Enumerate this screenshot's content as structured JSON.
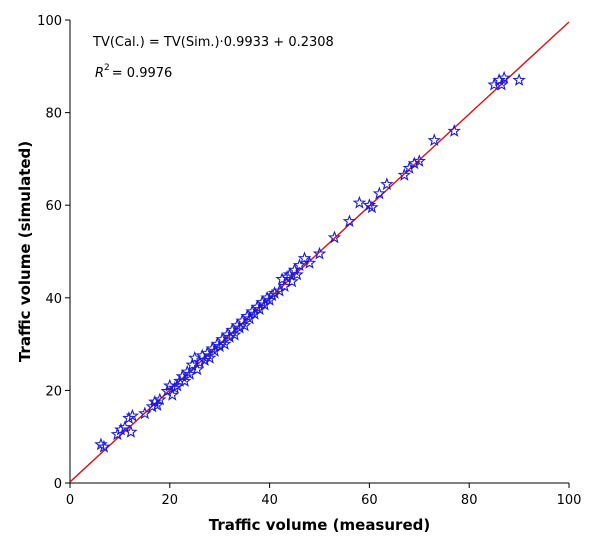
{
  "chart_data": {
    "type": "scatter",
    "xlabel": "Traffic volume (measured)",
    "ylabel": "Traffic volume (simulated)",
    "xlim": [
      0,
      100
    ],
    "ylim": [
      0,
      100
    ],
    "xticks": [
      0,
      20,
      40,
      60,
      80,
      100
    ],
    "yticks": [
      0,
      20,
      40,
      60,
      80,
      100
    ],
    "grid": false,
    "annotations": {
      "equation": "TV(Cal.) = TV(Sim.)·0.9933 + 0.2308",
      "r2_prefix": "R",
      "r2_power": "2",
      "r2_value": "= 0.9976"
    },
    "fit_line": {
      "slope": 0.9933,
      "intercept": 0.2308,
      "x_range": [
        0,
        100
      ]
    },
    "series": [
      {
        "marker": "star",
        "color": "#1a1adc",
        "points": [
          [
            6.2,
            8.3
          ],
          [
            6.8,
            7.8
          ],
          [
            9.5,
            10.5
          ],
          [
            10.2,
            11.5
          ],
          [
            11.0,
            12.0
          ],
          [
            11.8,
            14.0
          ],
          [
            12.5,
            14.5
          ],
          [
            12.2,
            11.0
          ],
          [
            15.0,
            15.0
          ],
          [
            16.5,
            16.5
          ],
          [
            17.0,
            17.5
          ],
          [
            17.5,
            16.8
          ],
          [
            18.0,
            18.0
          ],
          [
            19.5,
            19.8
          ],
          [
            20.0,
            21.0
          ],
          [
            20.5,
            19.0
          ],
          [
            21.0,
            20.5
          ],
          [
            21.5,
            21.0
          ],
          [
            22.0,
            22.0
          ],
          [
            22.5,
            23.0
          ],
          [
            23.0,
            22.0
          ],
          [
            23.5,
            24.0
          ],
          [
            24.0,
            23.5
          ],
          [
            24.5,
            25.5
          ],
          [
            25.0,
            27.0
          ],
          [
            25.5,
            24.5
          ],
          [
            26.0,
            26.0
          ],
          [
            26.5,
            27.5
          ],
          [
            27.0,
            26.5
          ],
          [
            27.5,
            28.0
          ],
          [
            28.0,
            27.0
          ],
          [
            28.5,
            29.0
          ],
          [
            29.0,
            28.5
          ],
          [
            29.5,
            30.0
          ],
          [
            30.0,
            29.5
          ],
          [
            30.5,
            31.0
          ],
          [
            31.0,
            30.0
          ],
          [
            31.5,
            32.0
          ],
          [
            32.0,
            31.5
          ],
          [
            32.5,
            33.0
          ],
          [
            33.0,
            32.0
          ],
          [
            33.5,
            34.0
          ],
          [
            34.0,
            33.5
          ],
          [
            34.5,
            35.0
          ],
          [
            35.0,
            34.0
          ],
          [
            35.5,
            36.0
          ],
          [
            36.0,
            35.5
          ],
          [
            36.5,
            37.0
          ],
          [
            37.0,
            36.5
          ],
          [
            37.5,
            38.0
          ],
          [
            38.0,
            37.5
          ],
          [
            38.5,
            39.0
          ],
          [
            39.0,
            38.5
          ],
          [
            39.5,
            40.0
          ],
          [
            40.0,
            39.5
          ],
          [
            40.5,
            40.5
          ],
          [
            41.0,
            41.0
          ],
          [
            42.0,
            41.5
          ],
          [
            42.5,
            44.0
          ],
          [
            43.0,
            42.5
          ],
          [
            43.5,
            44.5
          ],
          [
            44.0,
            45.0
          ],
          [
            44.5,
            43.5
          ],
          [
            45.0,
            46.0
          ],
          [
            45.5,
            45.0
          ],
          [
            46.0,
            47.0
          ],
          [
            47.0,
            48.5
          ],
          [
            48.0,
            47.5
          ],
          [
            50.0,
            49.5
          ],
          [
            53.0,
            53.0
          ],
          [
            56.0,
            56.5
          ],
          [
            58.0,
            60.5
          ],
          [
            60.0,
            60.0
          ],
          [
            60.5,
            59.5
          ],
          [
            62.0,
            62.5
          ],
          [
            63.5,
            64.5
          ],
          [
            67.0,
            66.5
          ],
          [
            68.0,
            68.0
          ],
          [
            69.0,
            69.0
          ],
          [
            70.0,
            69.5
          ],
          [
            73.0,
            74.0
          ],
          [
            77.0,
            76.0
          ],
          [
            85.0,
            86.0
          ],
          [
            86.0,
            87.0
          ],
          [
            86.5,
            86.0
          ],
          [
            87.0,
            87.5
          ],
          [
            90.0,
            87.0
          ]
        ]
      }
    ]
  },
  "colors": {
    "marker": "#1a1adc",
    "fit_line": "#e01010",
    "axis": "#000000"
  }
}
